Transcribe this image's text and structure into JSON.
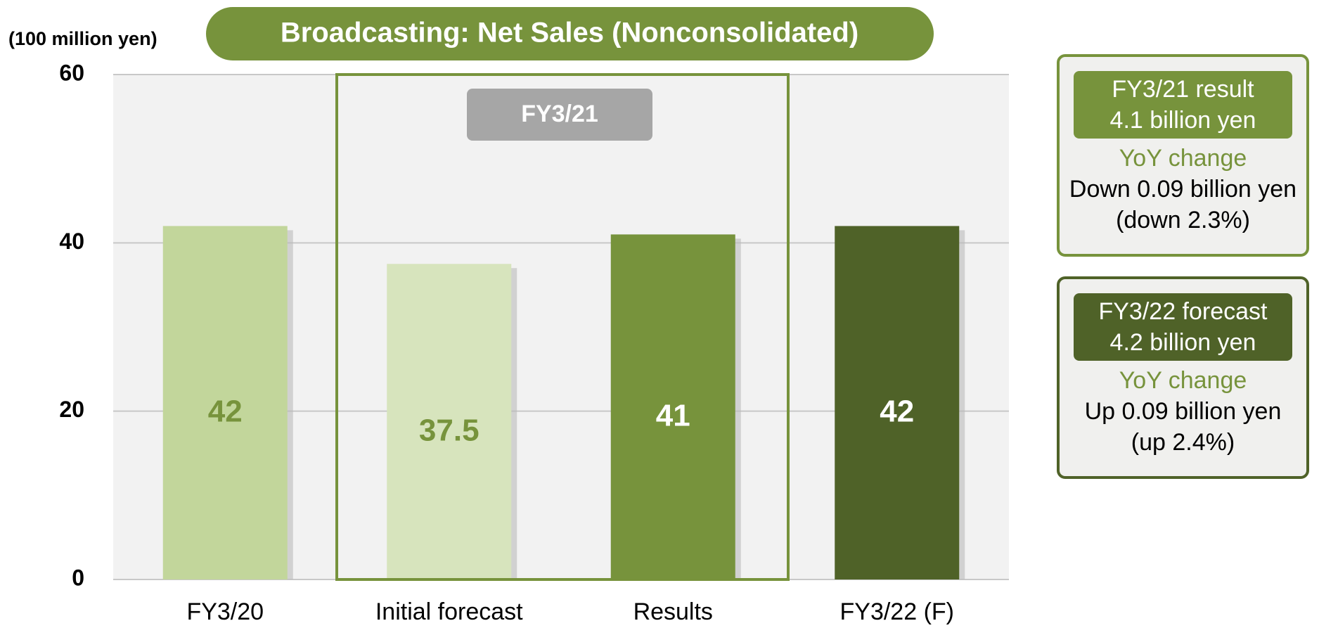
{
  "chart_data": {
    "type": "bar",
    "title": "Broadcasting: Net Sales (Nonconsolidated)",
    "unit_label": "(100 million yen)",
    "group_label": "FY3/21",
    "categories": [
      "FY3/20",
      "Initial forecast",
      "Results",
      "FY3/22 (F)"
    ],
    "values": [
      42,
      37.5,
      41,
      42
    ],
    "colors": [
      "#c2d69b",
      "#d7e4bd",
      "#77933c",
      "#4f6228"
    ],
    "label_colors": [
      "#77933c",
      "#77933c",
      "#ffffff",
      "#ffffff"
    ],
    "ylim": [
      0,
      60
    ],
    "yticks": [
      0,
      20,
      40,
      60
    ],
    "grid": true,
    "panels": [
      {
        "header": [
          "FY3/21 result",
          "4.1 billion yen"
        ],
        "subheader": "YoY change",
        "lines": [
          "Down 0.09 billion yen",
          "(down 2.3%)"
        ],
        "color": "#77933c"
      },
      {
        "header": [
          "FY3/22 forecast",
          "4.2 billion yen"
        ],
        "subheader": "YoY change",
        "lines": [
          "Up 0.09 billion yen",
          "(up 2.4%)"
        ],
        "color": "#4f6228"
      }
    ]
  }
}
